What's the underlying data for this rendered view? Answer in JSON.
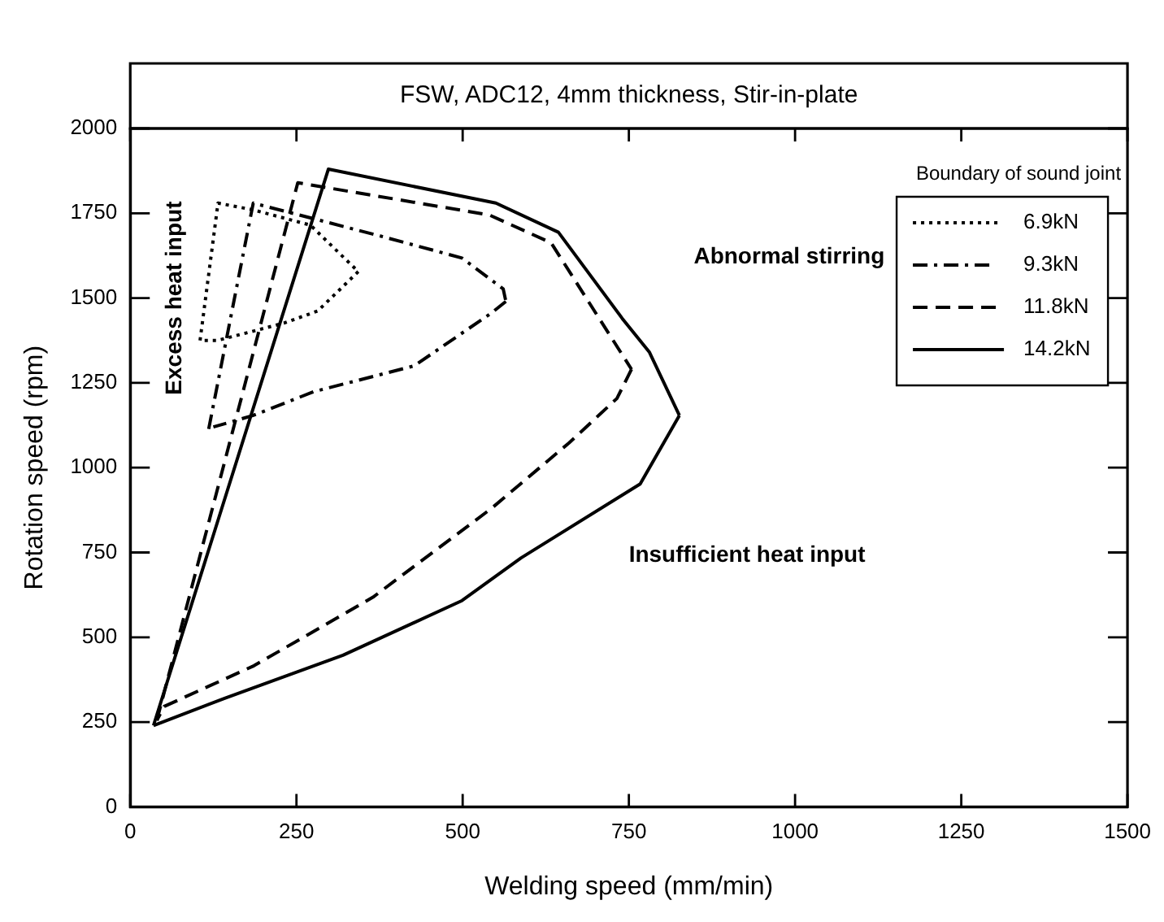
{
  "chart_data": {
    "type": "line",
    "title": "FSW, ADC12, 4mm thickness, Stir-in-plate",
    "xlabel": "Welding speed (mm/min)",
    "ylabel": "Rotation speed (rpm)",
    "legend_title": "Boundary of sound joint",
    "legend": "top right",
    "xlim": [
      0,
      1500
    ],
    "ylim": [
      0,
      2000
    ],
    "xticks": [
      0,
      250,
      500,
      750,
      1000,
      1250,
      1500
    ],
    "yticks": [
      0,
      250,
      500,
      750,
      1000,
      1250,
      1500,
      1750,
      2000
    ],
    "grid": false,
    "series": [
      {
        "name": "6.9kN",
        "color": "#000000",
        "line_style": "dotted",
        "x": [
          105,
          132,
          185,
          271,
          343
        ],
        "values": [
          1375,
          1780,
          1760,
          1715,
          1578
        ]
      },
      {
        "color": "#000000",
        "line_style": "dotted",
        "x": [
          343,
          282,
          231,
          131,
          105
        ],
        "values": [
          1578,
          1462,
          1426,
          1375,
          1375
        ]
      },
      {
        "name": "9.3kN",
        "color": "#000000",
        "line_style": "dashdot",
        "x": [
          118,
          185,
          376,
          499,
          561,
          565
        ],
        "values": [
          1114,
          1780,
          1683,
          1618,
          1527,
          1490
        ]
      },
      {
        "color": "#000000",
        "line_style": "dashdot",
        "x": [
          565,
          544,
          427,
          276,
          185,
          125
        ],
        "values": [
          1490,
          1457,
          1300,
          1224,
          1154,
          1120
        ]
      },
      {
        "name": "11.8kN",
        "color": "#000000",
        "line_style": "dashed",
        "x": [
          40,
          252,
          540,
          633,
          754
        ],
        "values": [
          255,
          1840,
          1745,
          1663,
          1290
        ]
      },
      {
        "color": "#000000",
        "line_style": "dashed",
        "x": [
          754,
          732,
          660,
          544,
          365,
          186,
          51,
          40
        ],
        "values": [
          1290,
          1204,
          1073,
          881,
          618,
          416,
          296,
          255
        ]
      },
      {
        "name": "14.2kN",
        "color": "#000000",
        "line_style": "solid",
        "x": [
          35,
          298,
          550,
          644,
          740,
          781,
          826
        ],
        "values": [
          240,
          1880,
          1780,
          1694,
          1440,
          1340,
          1154
        ]
      },
      {
        "color": "#000000",
        "line_style": "solid",
        "x": [
          826,
          767,
          588,
          499,
          320,
          142,
          35
        ],
        "values": [
          1154,
          952,
          734,
          608,
          447,
          320,
          240
        ]
      }
    ],
    "annotations": [
      "Abnormal stirring",
      "Excess heat input",
      "Insufficient heat input"
    ]
  }
}
